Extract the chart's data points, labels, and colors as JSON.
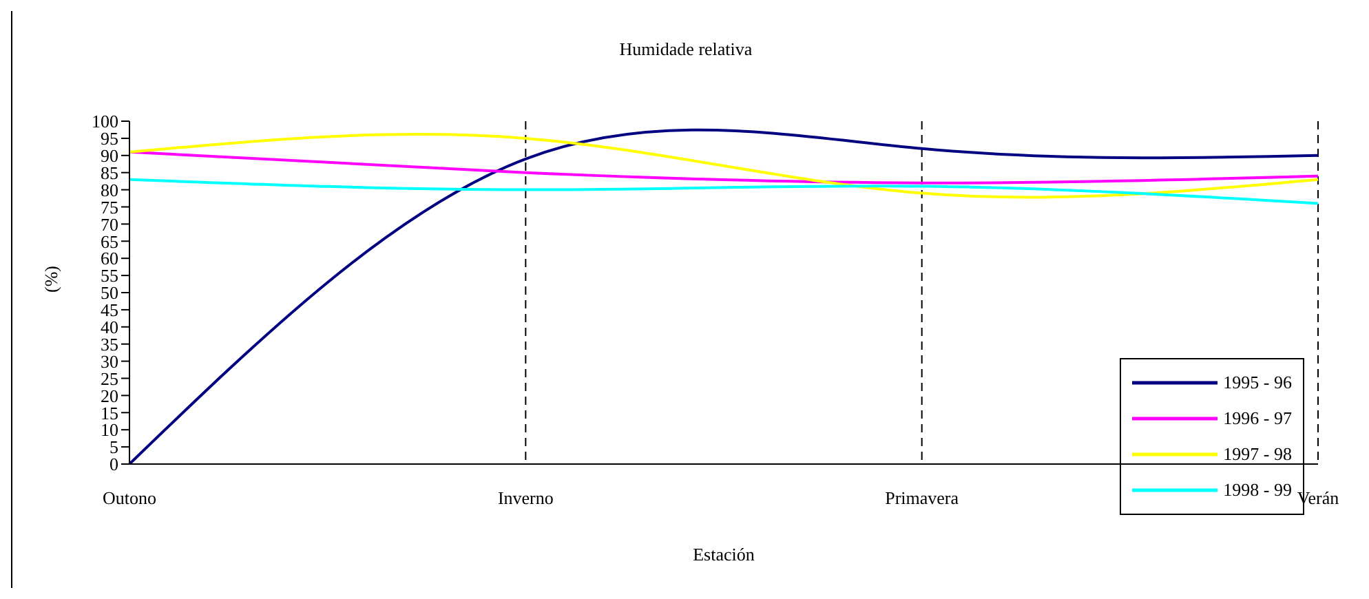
{
  "chart_data": {
    "type": "line",
    "title": "Humidade relativa",
    "xlabel": "Estación",
    "ylabel": "(%)",
    "categories": [
      "Outono",
      "Inverno",
      "Primavera",
      "Verán"
    ],
    "series": [
      {
        "name": "1995 - 96",
        "color": "#000080",
        "values": [
          0,
          89,
          92,
          90
        ]
      },
      {
        "name": "1996 - 97",
        "color": "#ff00ff",
        "values": [
          91,
          85,
          82,
          84
        ]
      },
      {
        "name": "1997 - 98",
        "color": "#ffff00",
        "values": [
          91,
          95,
          79,
          83
        ]
      },
      {
        "name": "1998 - 99",
        "color": "#00ffff",
        "values": [
          83,
          80,
          81,
          76
        ]
      }
    ],
    "ylim": [
      0,
      100
    ],
    "yticks": [
      0,
      5,
      10,
      15,
      20,
      25,
      30,
      35,
      40,
      45,
      50,
      55,
      60,
      65,
      70,
      75,
      80,
      85,
      90,
      95,
      100
    ],
    "grid": "x",
    "legend": "bottom right",
    "marker": "none",
    "line_style": "solid"
  }
}
